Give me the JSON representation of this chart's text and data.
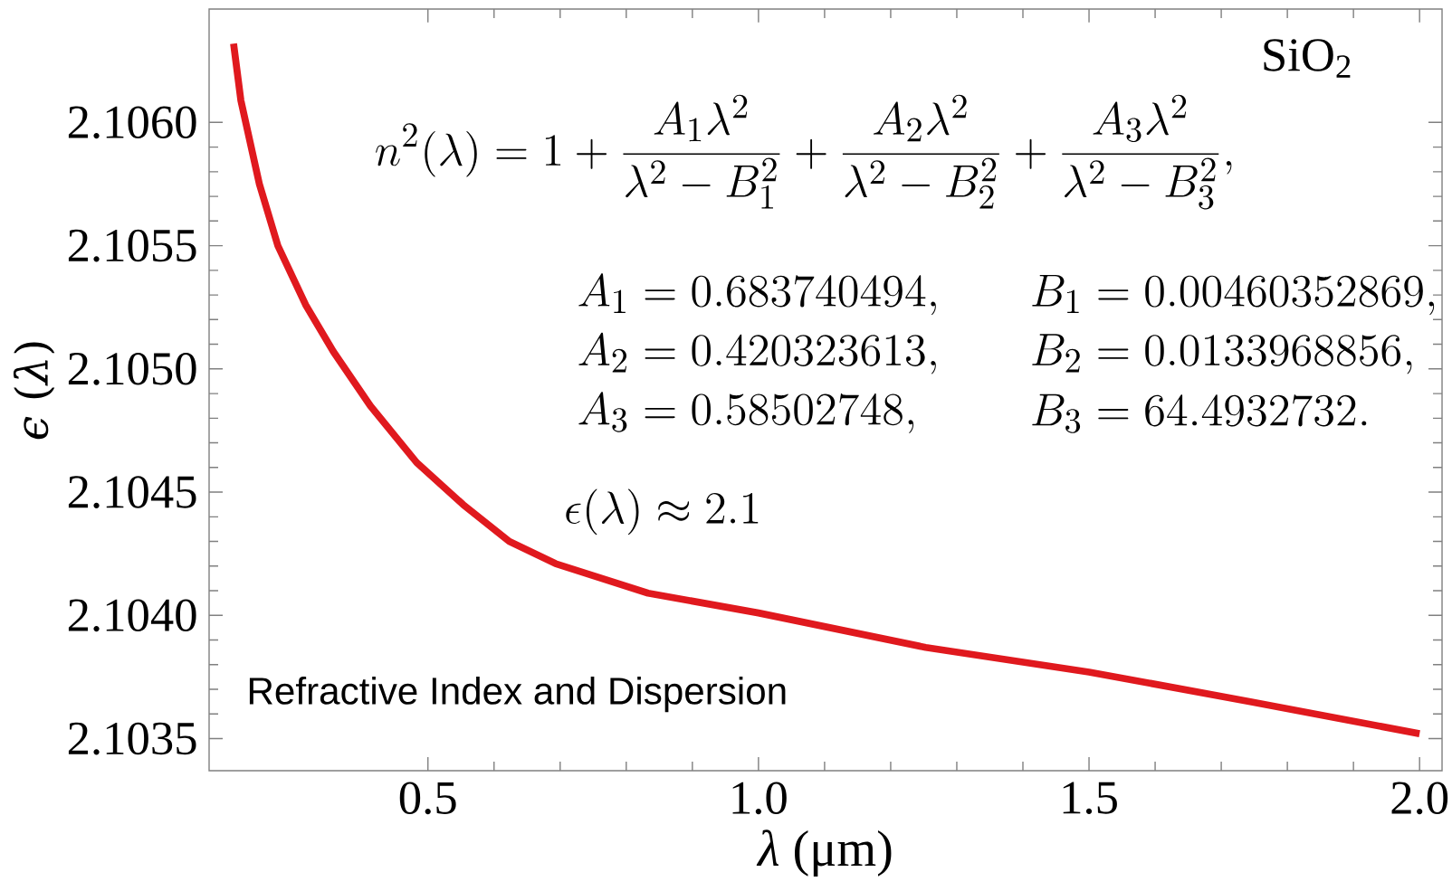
{
  "chart_data": {
    "type": "line",
    "xlabel": "*λ* (μm)",
    "ylabel": "*ϵ* (*λ*)",
    "x": [
      0.206,
      0.217,
      0.245,
      0.273,
      0.315,
      0.357,
      0.413,
      0.483,
      0.553,
      0.623,
      0.693,
      0.833,
      1.0,
      1.253,
      1.5,
      1.744,
      2.0
    ],
    "series": [
      {
        "color": "#e0191e",
        "values": [
          2.10632,
          2.10609,
          2.10575,
          2.1055,
          2.10526,
          2.10507,
          2.10485,
          2.10462,
          2.10445,
          2.1043,
          2.10421,
          2.10409,
          2.10401,
          2.10387,
          2.10377,
          2.10365,
          2.10352
        ]
      }
    ],
    "xlim": [
      0.169,
      2.034
    ],
    "ylim": [
      2.10337,
      2.10646
    ],
    "xticks": [
      0.5,
      {
        "value": 1,
        "label": "1.0"
      },
      1.5,
      {
        "value": 2,
        "label": "2.0"
      }
    ],
    "yticks": [
      {
        "value": 2.1035,
        "label": "2.1035"
      },
      {
        "value": 2.104,
        "label": "2.1040"
      },
      {
        "value": 2.1045,
        "label": "2.1045"
      },
      {
        "value": 2.105,
        "label": "2.1050"
      },
      {
        "value": 2.1055,
        "label": "2.1055"
      },
      {
        "value": 2.106,
        "label": "2.1060"
      }
    ],
    "annotations": [
      "SiO$_{2}$",
      "n^2(\\lambda) = 1 + \\frac{A_1\\lambda^2}{\\lambda^2 - B_1^2} + \\frac{A_2\\lambda^2}{\\lambda^2 - B_2^2} + \\frac{A_3\\lambda^2}{\\lambda^2 - B_3^2},",
      "A_1 = 0.683740494,",
      "A_2 = 0.420323613,",
      "A_3 = 0.58502748,",
      "B_1 = 0.00460352869,",
      "B_2 = 0.0133968856,",
      "B_3 = 64.4932732.",
      "\\epsilon(\\lambda) \\approx 2.1",
      "Refractive Index and Dispersion"
    ]
  }
}
